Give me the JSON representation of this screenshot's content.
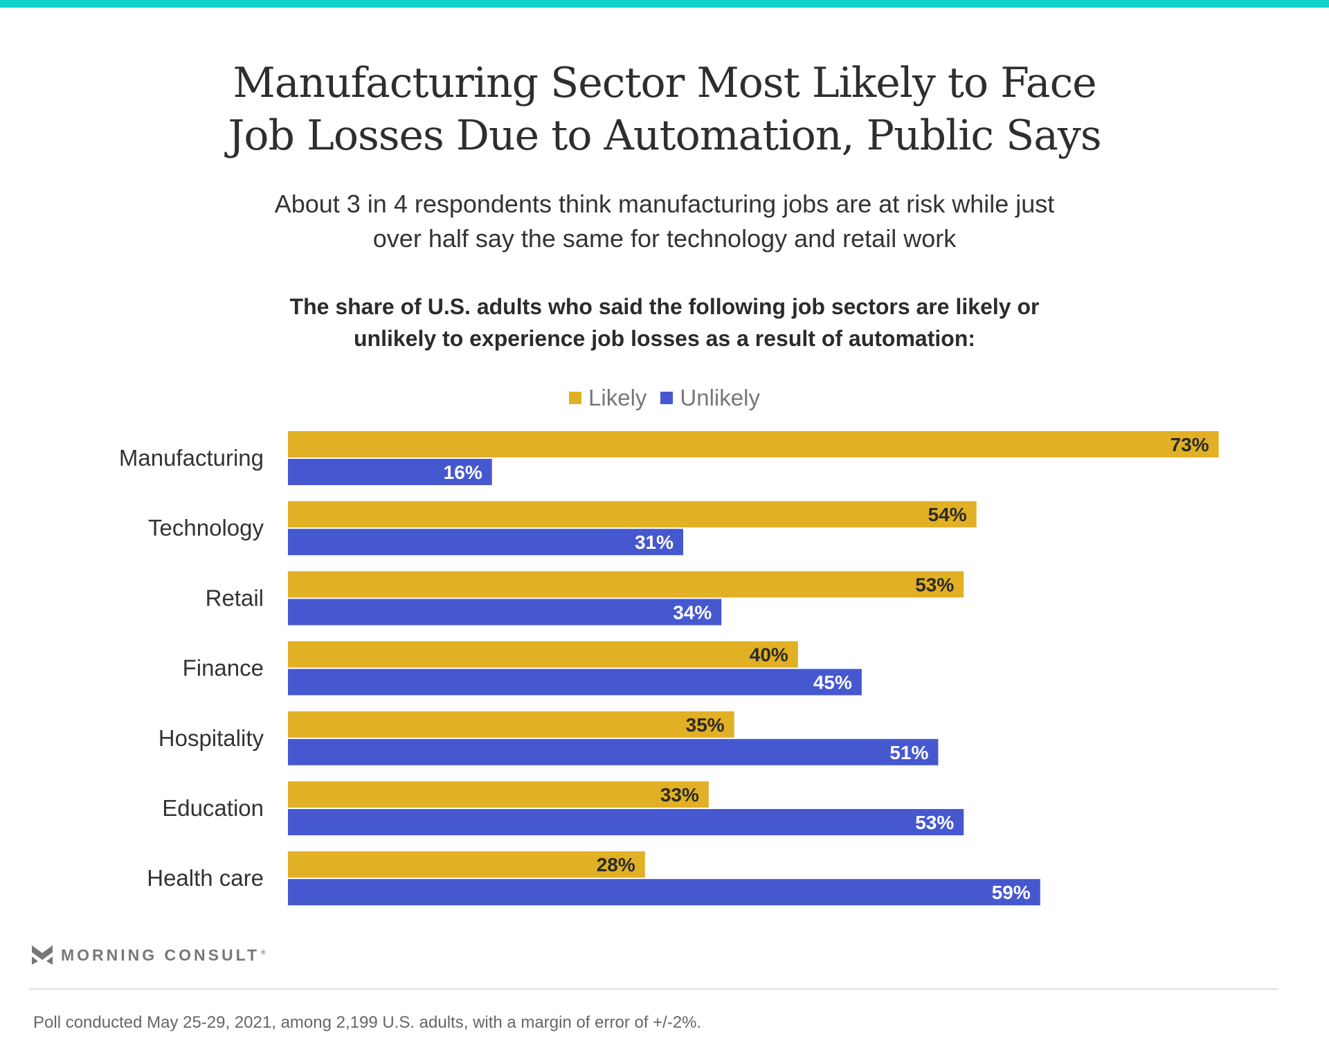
{
  "title_lines": [
    "Manufacturing Sector Most Likely to Face",
    "Job Losses Due to Automation, Public Says"
  ],
  "subtitle_lines": [
    "About 3 in 4 respondents think manufacturing jobs are at risk while just",
    "over half say the same for technology and retail work"
  ],
  "question_lines": [
    "The share of U.S. adults who said the following job sectors are likely or",
    "unlikely to experience job losses as a result of automation:"
  ],
  "legend": [
    {
      "label": "Likely",
      "color": "#E1B024"
    },
    {
      "label": "Unlikely",
      "color": "#4658CF"
    }
  ],
  "colors": {
    "accent_bar": "#11D3CB",
    "likely": "#E1B024",
    "unlikely": "#4658CF",
    "likely_label": "#2b2b2b",
    "unlikely_label": "#ffffff"
  },
  "chart_data": {
    "type": "bar",
    "orientation": "horizontal",
    "title": "Manufacturing Sector Most Likely to Face Job Losses Due to Automation, Public Says",
    "subtitle": "About 3 in 4 respondents think manufacturing jobs are at risk while just over half say the same for technology and retail work",
    "categories": [
      "Manufacturing",
      "Technology",
      "Retail",
      "Finance",
      "Hospitality",
      "Education",
      "Health care"
    ],
    "series": [
      {
        "name": "Likely",
        "values": [
          73,
          54,
          53,
          40,
          35,
          33,
          28
        ]
      },
      {
        "name": "Unlikely",
        "values": [
          16,
          31,
          34,
          45,
          51,
          53,
          59
        ]
      }
    ],
    "value_suffix": "%",
    "xlabel": "",
    "ylabel": "",
    "xlim": [
      0,
      100
    ],
    "grid": false,
    "legend_position": "top-center"
  },
  "brand": {
    "name": "MORNING CONSULT",
    "reg_mark": "®"
  },
  "footnote": "Poll conducted May 25-29, 2021, among 2,199 U.S. adults, with a margin of error of +/-2%."
}
